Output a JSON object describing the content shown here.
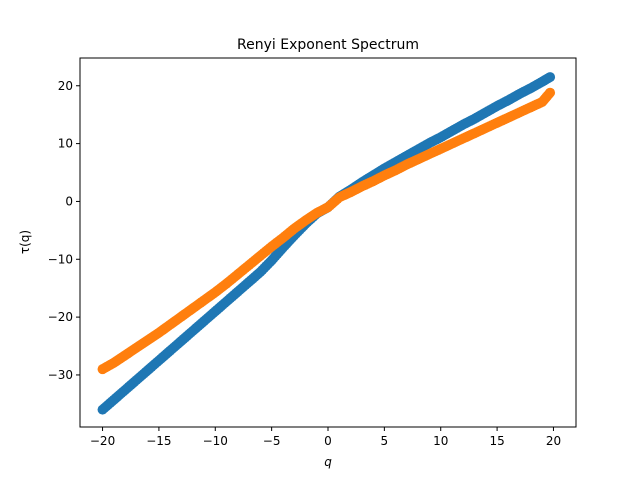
{
  "chart_data": {
    "type": "scatter",
    "title": "Renyi Exponent Spectrum",
    "xlabel": "q",
    "ylabel": "τ(q)",
    "xlim": [
      -22,
      22
    ],
    "ylim": [
      -39.0,
      24.8
    ],
    "xticks": [
      -20,
      -15,
      -10,
      -5,
      0,
      5,
      10,
      15,
      20
    ],
    "xtick_labels": [
      "−20",
      "−15",
      "−10",
      "−5",
      "0",
      "5",
      "10",
      "15",
      "20"
    ],
    "yticks": [
      -30,
      -20,
      -10,
      0,
      10,
      20
    ],
    "ytick_labels": [
      "−30",
      "−20",
      "−10",
      "0",
      "10",
      "20"
    ],
    "grid": false,
    "legend": "none",
    "series": [
      {
        "color": "#1f77b4",
        "points": [
          [
            -20,
            -36.0
          ],
          [
            -19,
            -34.3
          ],
          [
            -18,
            -32.6
          ],
          [
            -17,
            -30.9
          ],
          [
            -16,
            -29.2
          ],
          [
            -15,
            -27.5
          ],
          [
            -14,
            -25.8
          ],
          [
            -13,
            -24.1
          ],
          [
            -12,
            -22.4
          ],
          [
            -11,
            -20.7
          ],
          [
            -10,
            -19.0
          ],
          [
            -9,
            -17.3
          ],
          [
            -8,
            -15.6
          ],
          [
            -7,
            -13.9
          ],
          [
            -6,
            -12.2
          ],
          [
            -5,
            -10.2
          ],
          [
            -4,
            -8.0
          ],
          [
            -3,
            -5.9
          ],
          [
            -2,
            -3.9
          ],
          [
            -1,
            -2.1
          ],
          [
            0,
            -1.0
          ],
          [
            1,
            0.8
          ],
          [
            2,
            2.0
          ],
          [
            3,
            3.3
          ],
          [
            4,
            4.5
          ],
          [
            5,
            5.7
          ],
          [
            6,
            6.8
          ],
          [
            7,
            7.9
          ],
          [
            8,
            9.0
          ],
          [
            9,
            10.1
          ],
          [
            10,
            11.1
          ],
          [
            11,
            12.2
          ],
          [
            12,
            13.3
          ],
          [
            13,
            14.3
          ],
          [
            14,
            15.4
          ],
          [
            15,
            16.5
          ],
          [
            16,
            17.5
          ],
          [
            17,
            18.6
          ],
          [
            18,
            19.6
          ],
          [
            19,
            20.7
          ],
          [
            19.7,
            21.5
          ]
        ]
      },
      {
        "color": "#ff7f0e",
        "points": [
          [
            -20,
            -29.0
          ],
          [
            -19,
            -27.9
          ],
          [
            -18,
            -26.6
          ],
          [
            -17,
            -25.3
          ],
          [
            -16,
            -24.0
          ],
          [
            -15,
            -22.7
          ],
          [
            -14,
            -21.3
          ],
          [
            -13,
            -19.9
          ],
          [
            -12,
            -18.5
          ],
          [
            -11,
            -17.1
          ],
          [
            -10,
            -15.7
          ],
          [
            -9,
            -14.2
          ],
          [
            -8,
            -12.6
          ],
          [
            -7,
            -11.0
          ],
          [
            -6,
            -9.4
          ],
          [
            -5,
            -7.8
          ],
          [
            -4,
            -6.3
          ],
          [
            -3,
            -4.7
          ],
          [
            -2,
            -3.3
          ],
          [
            -1,
            -2.0
          ],
          [
            0,
            -1.0
          ],
          [
            1,
            0.7
          ],
          [
            2,
            1.6
          ],
          [
            3,
            2.6
          ],
          [
            4,
            3.5
          ],
          [
            5,
            4.5
          ],
          [
            6,
            5.4
          ],
          [
            7,
            6.4
          ],
          [
            8,
            7.3
          ],
          [
            9,
            8.2
          ],
          [
            10,
            9.1
          ],
          [
            11,
            10.0
          ],
          [
            12,
            10.9
          ],
          [
            13,
            11.8
          ],
          [
            14,
            12.7
          ],
          [
            15,
            13.6
          ],
          [
            16,
            14.5
          ],
          [
            17,
            15.4
          ],
          [
            18,
            16.3
          ],
          [
            19,
            17.2
          ],
          [
            19.7,
            18.8
          ]
        ]
      }
    ]
  }
}
